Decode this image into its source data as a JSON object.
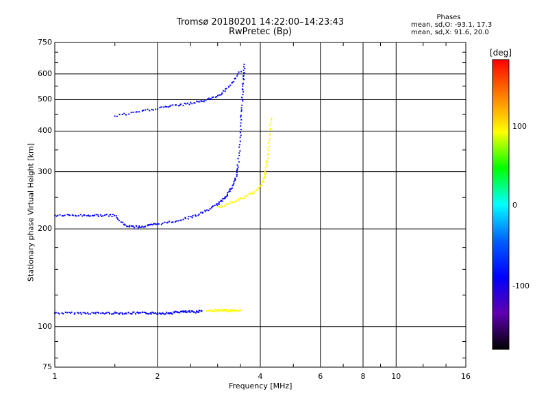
{
  "title_line1": "Tromsø 20180201 14:22:00–14:23:43",
  "title_line2": "RwPretec (Bp)",
  "phases_header": "Phases",
  "phases_O": "mean, sd,O: -93.1, 17.3",
  "phases_X": "mean, sd,X: 91.6, 20.0",
  "colorbar": {
    "label": "[deg]",
    "ticks": [
      "100",
      "0",
      "-100"
    ],
    "colors": [
      "#ff0000",
      "#ff8000",
      "#ffff00",
      "#00ff00",
      "#00ffff",
      "#0060ff",
      "#0000ff",
      "#6000b0",
      "#000000"
    ]
  },
  "chart_data": {
    "type": "scatter",
    "title": "Tromsø 20180201 14:22:00–14:23:43",
    "subtitle": "RwPretec (Bp)",
    "xlabel": "Frequency [MHz]",
    "ylabel": "Stationary phase Virtual Height [km]",
    "xscale": "log",
    "yscale": "log",
    "xlim": [
      1,
      16
    ],
    "ylim": [
      75,
      750
    ],
    "x_ticks": [
      "1",
      "2",
      "4",
      "6",
      "8",
      "10",
      "16"
    ],
    "y_ticks": [
      "75",
      "100",
      "200",
      "300",
      "400",
      "500",
      "600",
      "750"
    ],
    "grid": true,
    "color_scale": "phase [deg], -180 to 180",
    "series": [
      {
        "trace": "E-region O",
        "phase": -100,
        "x": [
          1.0,
          1.1,
          1.2,
          1.3,
          1.4,
          1.5,
          1.6,
          1.7,
          1.8,
          1.9,
          2.0,
          2.1,
          2.2,
          2.3,
          2.4,
          2.5,
          2.6,
          2.7
        ],
        "y": [
          110,
          110,
          110,
          110,
          110,
          110,
          110,
          110,
          110,
          110,
          110,
          110,
          110,
          111,
          111,
          111,
          111,
          112
        ]
      },
      {
        "trace": "E-region X",
        "phase": 100,
        "x": [
          2.8,
          2.9,
          3.0,
          3.1,
          3.2,
          3.3,
          3.4,
          3.5
        ],
        "y": [
          112,
          112,
          112,
          112,
          112,
          112,
          112,
          112
        ]
      },
      {
        "trace": "F-region O",
        "phase": -100,
        "x": [
          1.0,
          1.1,
          1.2,
          1.3,
          1.4,
          1.5,
          1.6,
          1.7,
          1.8,
          1.9,
          2.0,
          2.2,
          2.4,
          2.6,
          2.8,
          3.0,
          3.1,
          3.2,
          3.3,
          3.4,
          3.45,
          3.5,
          3.52,
          3.55,
          3.57,
          3.6
        ],
        "y": [
          220,
          220,
          220,
          220,
          220,
          220,
          205,
          203,
          203,
          205,
          207,
          210,
          215,
          220,
          228,
          238,
          245,
          255,
          268,
          290,
          320,
          380,
          450,
          520,
          580,
          640
        ]
      },
      {
        "trace": "F-region X",
        "phase": 100,
        "x": [
          3.0,
          3.2,
          3.4,
          3.6,
          3.8,
          4.0,
          4.1,
          4.15,
          4.2,
          4.25,
          4.3
        ],
        "y": [
          233,
          238,
          245,
          250,
          258,
          270,
          285,
          300,
          330,
          380,
          440
        ]
      },
      {
        "trace": "Oblique echo",
        "phase": -100,
        "x": [
          1.5,
          1.7,
          1.9,
          2.1,
          2.3,
          2.5,
          2.7,
          2.9,
          3.1,
          3.3,
          3.5
        ],
        "y": [
          445,
          455,
          465,
          475,
          480,
          487,
          495,
          505,
          525,
          560,
          610
        ]
      }
    ]
  }
}
